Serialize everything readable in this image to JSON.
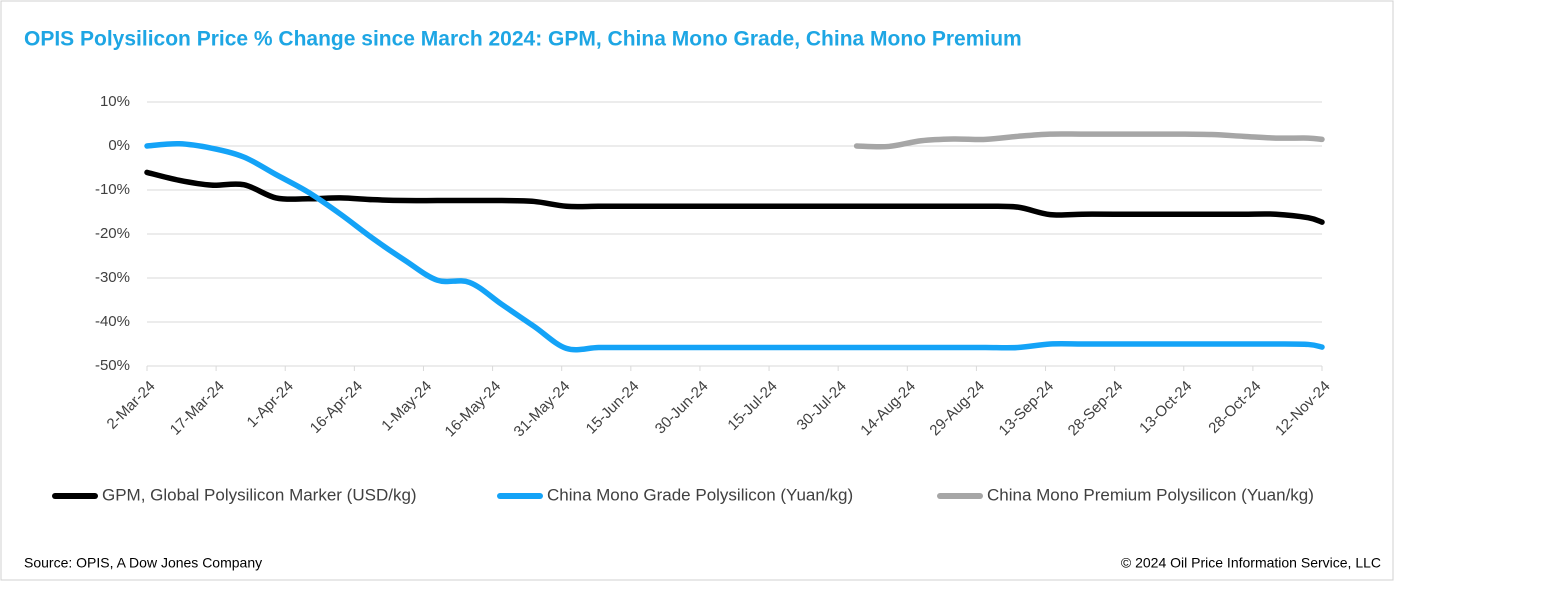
{
  "chart_data": {
    "type": "line",
    "title": "OPIS Polysilicon Price % Change since March 2024: GPM, China Mono Grade, China Mono Premium",
    "source": "Source: OPIS, A Dow Jones Company",
    "copyright": "© 2024 Oil Price Information Service, LLC",
    "x": [
      "2024-03-02",
      "2024-03-09",
      "2024-03-16",
      "2024-03-23",
      "2024-03-30",
      "2024-04-06",
      "2024-04-13",
      "2024-04-20",
      "2024-04-27",
      "2024-05-04",
      "2024-05-11",
      "2024-05-18",
      "2024-05-25",
      "2024-06-01",
      "2024-06-08",
      "2024-06-15",
      "2024-06-22",
      "2024-06-29",
      "2024-07-06",
      "2024-07-13",
      "2024-07-20",
      "2024-07-27",
      "2024-08-03",
      "2024-08-10",
      "2024-08-17",
      "2024-08-24",
      "2024-08-31",
      "2024-09-07",
      "2024-09-14",
      "2024-09-21",
      "2024-09-28",
      "2024-10-05",
      "2024-10-12",
      "2024-10-19",
      "2024-10-26",
      "2024-11-02",
      "2024-11-09",
      "2024-11-12"
    ],
    "series": [
      {
        "name": "GPM, Global Polysilicon Marker (USD/kg)",
        "color": "#000000",
        "values": [
          -6,
          -7.8,
          -8.9,
          -8.8,
          -11.8,
          -12,
          -11.8,
          -12.2,
          -12.4,
          -12.4,
          -12.4,
          -12.4,
          -12.6,
          -13.7,
          -13.7,
          -13.7,
          -13.7,
          -13.7,
          -13.7,
          -13.7,
          -13.7,
          -13.7,
          -13.7,
          -13.7,
          -13.7,
          -13.7,
          -13.7,
          -13.9,
          -15.6,
          -15.5,
          -15.5,
          -15.5,
          -15.5,
          -15.5,
          -15.5,
          -15.5,
          -16.3,
          -17.3
        ]
      },
      {
        "name": "China Mono Grade Polysilicon (Yuan/kg)",
        "color": "#14a3f7",
        "values": [
          0,
          0.5,
          -0.5,
          -2.5,
          -6.5,
          -10.5,
          -15.5,
          -21,
          -26,
          -30.5,
          -31,
          -36,
          -41,
          -46,
          -45.8,
          -45.8,
          -45.8,
          -45.8,
          -45.8,
          -45.8,
          -45.8,
          -45.8,
          -45.8,
          -45.8,
          -45.8,
          -45.8,
          -45.8,
          -45.8,
          -45,
          -45,
          -45,
          -45,
          -45,
          -45,
          -45,
          -45,
          -45.1,
          -45.7
        ]
      },
      {
        "name": "China Mono Premium Polysilicon (Yuan/kg)",
        "color": "#a6a6a6",
        "values": [
          null,
          null,
          null,
          null,
          null,
          null,
          null,
          null,
          null,
          null,
          null,
          null,
          null,
          null,
          null,
          null,
          null,
          null,
          null,
          null,
          null,
          null,
          0,
          -0.1,
          1.2,
          1.6,
          1.5,
          2.2,
          2.7,
          2.7,
          2.7,
          2.7,
          2.7,
          2.6,
          2.2,
          1.8,
          1.8,
          1.5
        ]
      }
    ],
    "xlim": [
      "2024-03-02",
      "2024-11-12"
    ],
    "xticks": [
      {
        "value": "2024-03-02",
        "label": "2-Mar-24"
      },
      {
        "value": "2024-03-17",
        "label": "17-Mar-24"
      },
      {
        "value": "2024-04-01",
        "label": "1-Apr-24"
      },
      {
        "value": "2024-04-16",
        "label": "16-Apr-24"
      },
      {
        "value": "2024-05-01",
        "label": "1-May-24"
      },
      {
        "value": "2024-05-16",
        "label": "16-May-24"
      },
      {
        "value": "2024-05-31",
        "label": "31-May-24"
      },
      {
        "value": "2024-06-15",
        "label": "15-Jun-24"
      },
      {
        "value": "2024-06-30",
        "label": "30-Jun-24"
      },
      {
        "value": "2024-07-15",
        "label": "15-Jul-24"
      },
      {
        "value": "2024-07-30",
        "label": "30-Jul-24"
      },
      {
        "value": "2024-08-14",
        "label": "14-Aug-24"
      },
      {
        "value": "2024-08-29",
        "label": "29-Aug-24"
      },
      {
        "value": "2024-09-13",
        "label": "13-Sep-24"
      },
      {
        "value": "2024-09-28",
        "label": "28-Sep-24"
      },
      {
        "value": "2024-10-13",
        "label": "13-Oct-24"
      },
      {
        "value": "2024-10-28",
        "label": "28-Oct-24"
      },
      {
        "value": "2024-11-12",
        "label": "12-Nov-24"
      }
    ],
    "ylim": [
      -50,
      10
    ],
    "yticks": [
      {
        "value": -50,
        "label": "-50%"
      },
      {
        "value": -40,
        "label": "-40%"
      },
      {
        "value": -30,
        "label": "-30%"
      },
      {
        "value": -20,
        "label": "-20%"
      },
      {
        "value": -10,
        "label": "-10%"
      },
      {
        "value": 0,
        "label": "0%"
      },
      {
        "value": 10,
        "label": "10%"
      }
    ],
    "grid": true,
    "legend": "bottom"
  }
}
